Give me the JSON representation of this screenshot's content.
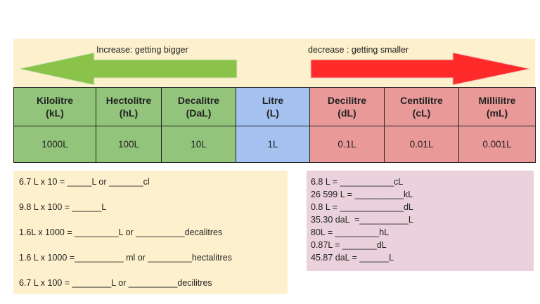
{
  "arrows": {
    "increase_label": "Increase: getting bigger",
    "decrease_label": "decrease : getting smaller",
    "increase_color": "#8bc34a",
    "decrease_color": "#ff2a2a"
  },
  "units": [
    {
      "name": "Kilolitre",
      "abbr": "(kL)",
      "value": "1000L"
    },
    {
      "name": "Hectolitre",
      "abbr": "(hL)",
      "value": "100L"
    },
    {
      "name": "Decalitre",
      "abbr": "(DaL)",
      "value": "10L"
    },
    {
      "name": "Litre",
      "abbr": "(L)",
      "value": "1L"
    },
    {
      "name": "Decilitre",
      "abbr": "(dL)",
      "value": "0.1L"
    },
    {
      "name": "Centilitre",
      "abbr": "(cL)",
      "value": "0.01L"
    },
    {
      "name": "Millilitre",
      "abbr": "(mL)",
      "value": "0.001L"
    }
  ],
  "left_questions": [
    "6.7 L x 10 = _____L or _______cl",
    "9.8 L x 100 = ______L",
    "1.6L x 1000 = _________L or __________decalitres",
    "1.6 L x 1000 =__________ ml or _________hectalitres",
    "6.7 L x 100 = ________L or __________decilitres"
  ],
  "right_questions": [
    "6.8 L = ___________cL",
    "26 599 L = __________kL",
    "0.8 L = _____________dL",
    "35.30 daL  =__________L",
    "80L = _________hL",
    "0.87L = _______dL",
    "45.87 daL = ______L"
  ]
}
